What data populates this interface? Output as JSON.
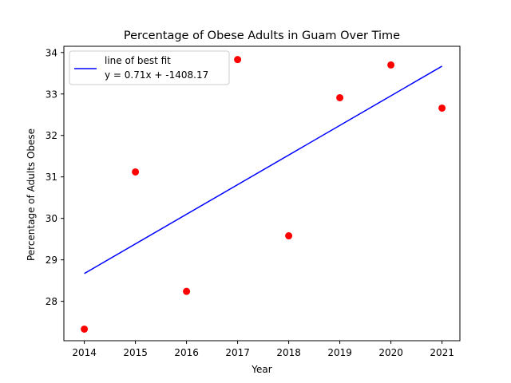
{
  "chart_data": {
    "type": "scatter",
    "title": "Percentage of Obese Adults in Guam Over Time",
    "xlabel": "Year",
    "ylabel": "Percentage of Adults Obese",
    "xlim": [
      2013.6,
      2021.35
    ],
    "ylim": [
      27.05,
      34.15
    ],
    "xticks": [
      2014,
      2015,
      2016,
      2017,
      2018,
      2019,
      2020,
      2021
    ],
    "yticks": [
      28,
      29,
      30,
      31,
      32,
      33,
      34
    ],
    "grid": false,
    "legend_position": "upper-left",
    "series": [
      {
        "type": "scatter",
        "color": "#ff0000",
        "x": [
          2014,
          2015,
          2016,
          2017,
          2018,
          2019,
          2020,
          2021
        ],
        "y": [
          27.33,
          31.12,
          28.24,
          33.83,
          29.58,
          32.91,
          33.7,
          32.66
        ]
      },
      {
        "type": "line",
        "name": "line of best fit",
        "color": "#0000ff",
        "x": [
          2014,
          2021
        ],
        "y": [
          28.67,
          33.67
        ]
      }
    ],
    "legend": {
      "label_line1": "line of best fit",
      "label_line2": "y = 0.71x + -1408.17"
    }
  }
}
